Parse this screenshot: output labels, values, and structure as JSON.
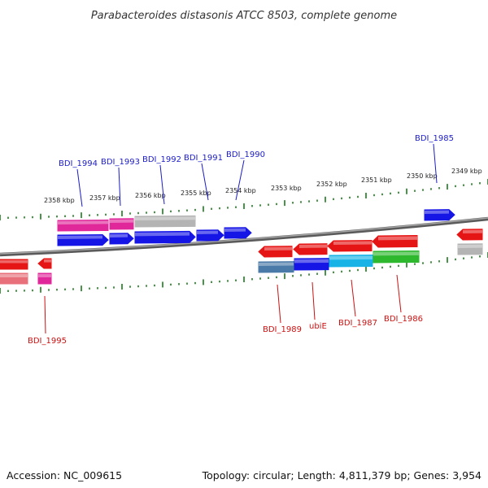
{
  "header": {
    "title": "Parabacteroides distasonis ATCC 8503, complete genome"
  },
  "ruler": {
    "ticks": [
      "2358 kbp",
      "2357 kbp",
      "2356 kbp",
      "2355 kbp",
      "2354 kbp",
      "2353 kbp",
      "2352 kbp",
      "2351 kbp",
      "2350 kbp",
      "2349 kbp"
    ]
  },
  "genes": {
    "forward_labels": [
      "BDI_1994",
      "BDI_1993",
      "BDI_1992",
      "BDI_1991",
      "BDI_1990",
      "BDI_1985"
    ],
    "reverse_labels": [
      "BDI_1995",
      "BDI_1989",
      "ubiE",
      "BDI_1987",
      "BDI_1986"
    ]
  },
  "colors": {
    "forward_label": "#1c1cc8",
    "reverse_label": "#cc1111",
    "backbone": "#8a8a8a",
    "ruler_tick": "#1a7a1a",
    "gene_blue": "#1515e6",
    "gene_red": "#e61515",
    "gene_magenta": "#e0289a",
    "gene_gray": "#b4b4b4",
    "gene_steel": "#4a7aa8",
    "gene_cyan": "#17b3e6",
    "gene_green": "#2db82d",
    "gene_pink": "#e8707a"
  },
  "footer": {
    "accession": "Accession: NC_009615",
    "summary": "Topology: circular; Length: 4,811,379 bp; Genes: 3,954"
  }
}
